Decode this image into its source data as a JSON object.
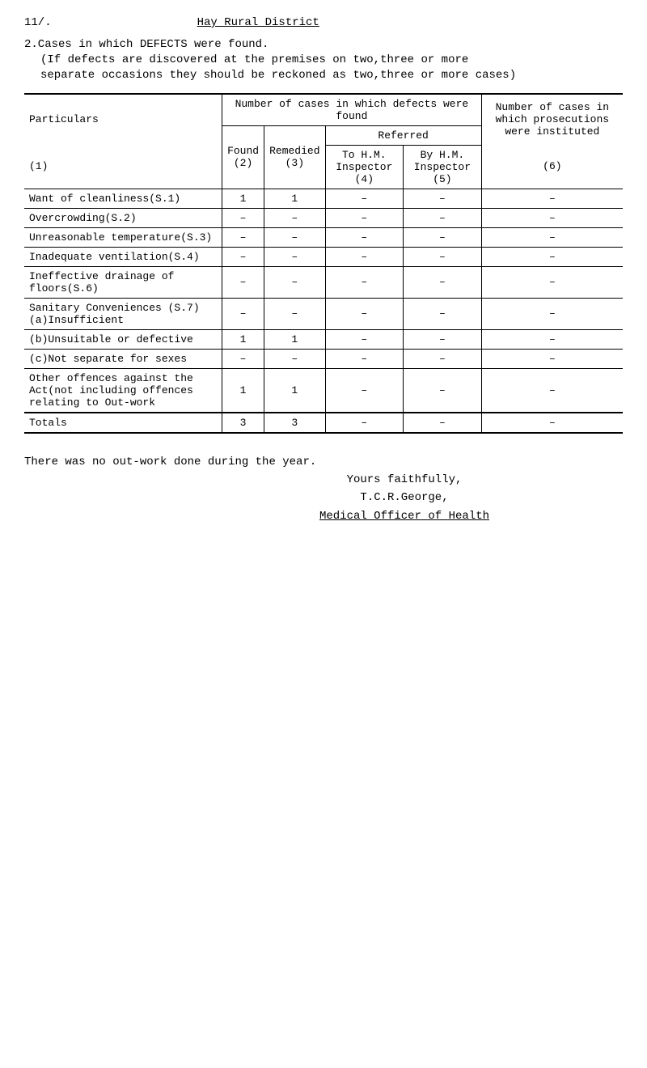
{
  "page_number": "11/.",
  "title": "Hay Rural District",
  "intro_heading": "2.Cases in which DEFECTS were found.",
  "intro_body1": "(If defects are discovered at the premises on two,three or more",
  "intro_body2": "separate occasions they should be reckoned as two,three or more cases)",
  "header": {
    "particulars": "Particulars",
    "particulars_num": "(1)",
    "cases_found": "Number of cases in which defects were found",
    "number_of": "Number of cases in which prosecutions were instituted",
    "found": "Found",
    "found_num": "(2)",
    "remedied": "Remedied",
    "remedied_num": "(3)",
    "referred": "Referred",
    "to_hm": "To H.M. Inspector",
    "to_hm_num": "(4)",
    "by_hm": "By H.M. Inspector",
    "by_hm_num": "(5)",
    "col6_num": "(6)"
  },
  "rows": [
    {
      "label": "Want of cleanliness(S.1)",
      "c2": "1",
      "c3": "1",
      "c4": "–",
      "c5": "–",
      "c6": "–"
    },
    {
      "label": "Overcrowding(S.2)",
      "c2": "–",
      "c3": "–",
      "c4": "–",
      "c5": "–",
      "c6": "–"
    },
    {
      "label": "Unreasonable temperature(S.3)",
      "c2": "–",
      "c3": "–",
      "c4": "–",
      "c5": "–",
      "c6": "–"
    },
    {
      "label": "Inadequate ventilation(S.4)",
      "c2": "–",
      "c3": "–",
      "c4": "–",
      "c5": "–",
      "c6": "–"
    },
    {
      "label": "Ineffective drainage of floors(S.6)",
      "c2": "–",
      "c3": "–",
      "c4": "–",
      "c5": "–",
      "c6": "–"
    },
    {
      "label": "Sanitary Conveniences (S.7)\n(a)Insufficient",
      "c2": "–",
      "c3": "–",
      "c4": "–",
      "c5": "–",
      "c6": "–"
    },
    {
      "label": "(b)Unsuitable or defective",
      "c2": "1",
      "c3": "1",
      "c4": "–",
      "c5": "–",
      "c6": "–"
    },
    {
      "label": "(c)Not separate for sexes",
      "c2": "–",
      "c3": "–",
      "c4": "–",
      "c5": "–",
      "c6": "–"
    },
    {
      "label": "Other offences against the Act(not including offences relating to Out-work",
      "c2": "1",
      "c3": "1",
      "c4": "–",
      "c5": "–",
      "c6": "–"
    }
  ],
  "totals": {
    "label": "Totals",
    "c2": "3",
    "c3": "3",
    "c4": "–",
    "c5": "–",
    "c6": "–"
  },
  "footer": {
    "line1": "There was no out-work done during the year.",
    "line2": "Yours faithfully,",
    "line3": "T.C.R.George,",
    "line4": "Medical Officer of Health"
  }
}
